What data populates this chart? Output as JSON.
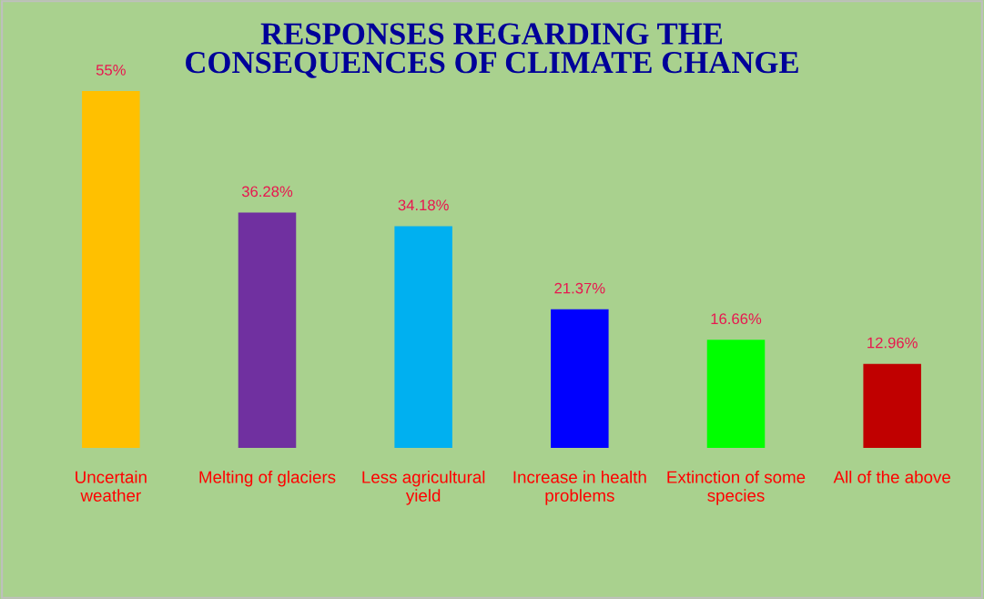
{
  "chart_data": {
    "type": "bar",
    "title": "RESPONSES REGARDING THE\nCONSEQUENCES OF CLIMATE CHANGE",
    "categories": [
      "Uncertain\nweather",
      "Melting of glaciers",
      "Less agricultural\nyield",
      "Increase in health\nproblems",
      "Extinction of some\nspecies",
      "All of the above"
    ],
    "values": [
      55,
      36.28,
      34.18,
      21.37,
      16.66,
      12.96
    ],
    "value_labels": [
      "55%",
      "36.28%",
      "34.18%",
      "21.37%",
      "16.66%",
      "12.96%"
    ],
    "colors": [
      "#ffc000",
      "#7030a0",
      "#00b0f0",
      "#0000ff",
      "#00ff00",
      "#c00000"
    ],
    "grid": false,
    "legend": false
  }
}
